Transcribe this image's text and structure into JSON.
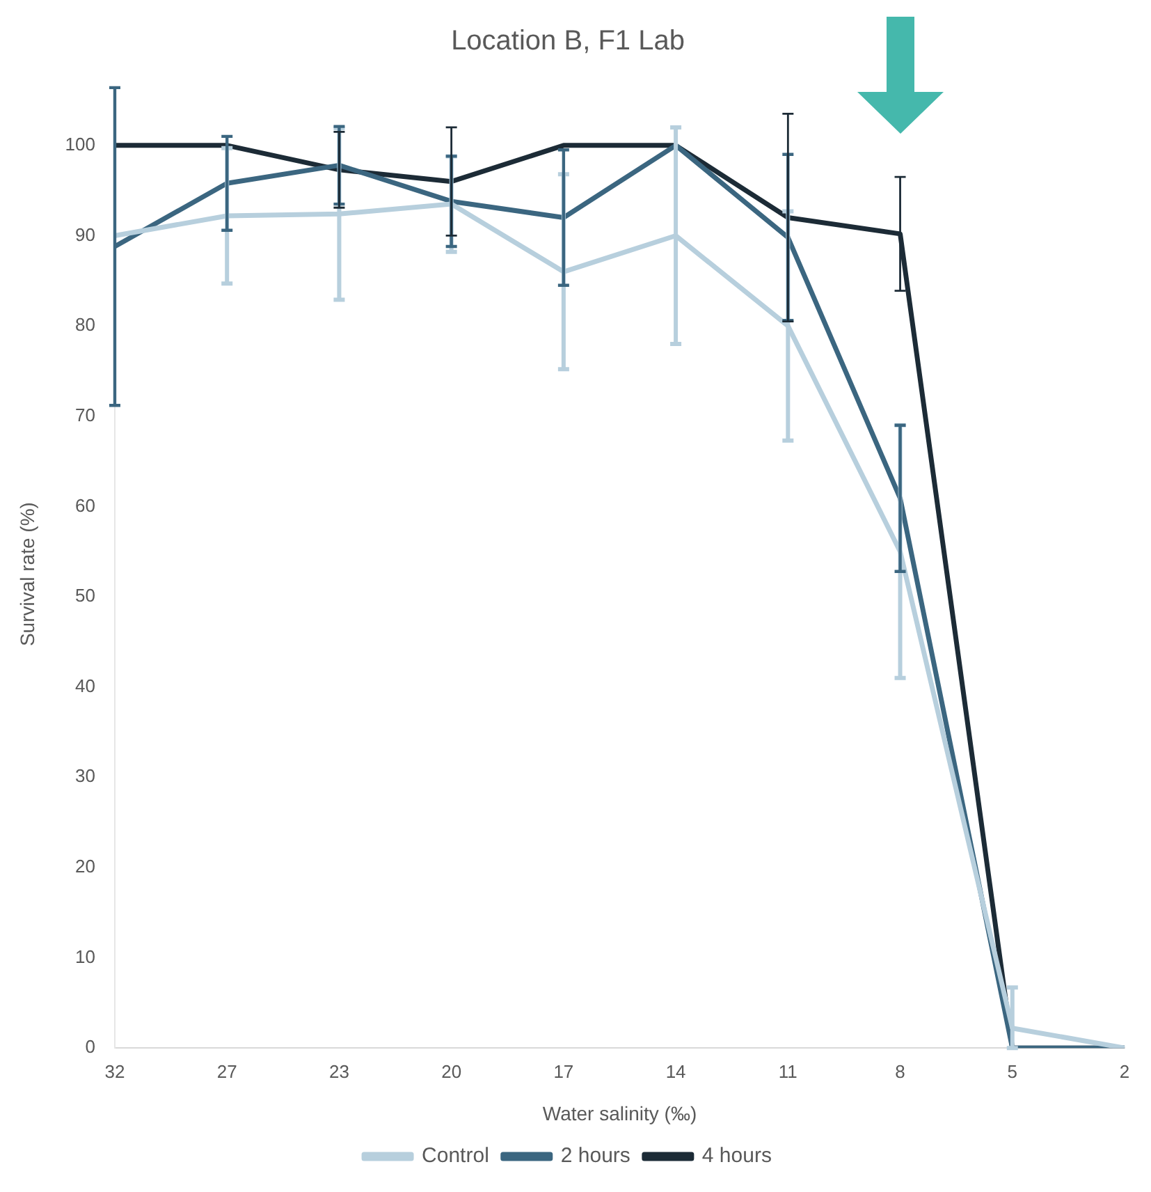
{
  "chart_data": {
    "type": "line",
    "title": "Location B, F1 Lab",
    "xlabel": "Water salinity (‰)",
    "ylabel": "Survival rate (%)",
    "categories": [
      "32",
      "27",
      "23",
      "20",
      "17",
      "14",
      "11",
      "8",
      "5",
      "2"
    ],
    "series": [
      {
        "name": "Control",
        "color": "#b7cfdd",
        "values": [
          90,
          92.2,
          92.4,
          93.5,
          86,
          90,
          80,
          55,
          2.2,
          0
        ],
        "errors": [
          null,
          7.5,
          9.5,
          5.3,
          10.8,
          12,
          12.7,
          14,
          [
            0,
            6.7
          ],
          null
        ]
      },
      {
        "name": "2 hours",
        "color": "#3b6680",
        "values": [
          88.8,
          95.8,
          97.8,
          93.8,
          92,
          100,
          89.8,
          60.9,
          0,
          0
        ],
        "errors": [
          17.6,
          5.2,
          4.3,
          5,
          7.5,
          null,
          9.2,
          8.1,
          null,
          null
        ]
      },
      {
        "name": "4 hours",
        "color": "#1c2b36",
        "values": [
          100,
          100,
          97.3,
          96,
          100,
          100,
          92,
          90.2,
          0,
          0
        ],
        "errors": [
          null,
          null,
          4.2,
          6,
          null,
          null,
          11.5,
          6.3,
          null,
          null
        ]
      }
    ],
    "ylim": [
      0,
      105
    ],
    "yticks": [
      0,
      10,
      20,
      30,
      40,
      50,
      60,
      70,
      80,
      90,
      100
    ],
    "grid": false,
    "legend": "bottom",
    "marker": "none",
    "line_style": "solid"
  }
}
